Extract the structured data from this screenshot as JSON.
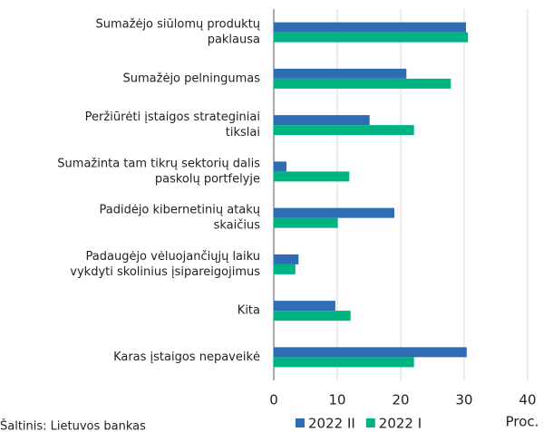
{
  "chart_data": {
    "type": "bar",
    "orientation": "horizontal",
    "categories": [
      [
        "Sumažėjo siūlomų produktų",
        "paklausa"
      ],
      [
        "Sumažėjo pelningumas"
      ],
      [
        "Peržiūrėti įstaigos strateginiai",
        "tikslai"
      ],
      [
        "Sumažinta tam tikrų sektorių dalis",
        "paskolų portfelyje"
      ],
      [
        "Padidėjo kibernetinių atakų",
        "skaičius"
      ],
      [
        "Padaugėjo vėluojančiųjų laiku",
        "vykdyti skolinius įsipareigojimus"
      ],
      [
        "Kita"
      ],
      [
        "Karas įstaigos nepaveikė"
      ]
    ],
    "series": [
      {
        "name": "2022 II",
        "color": "#2e6db4",
        "values": [
          30.3,
          20.9,
          15.1,
          2.0,
          19.0,
          3.9,
          9.7,
          30.4
        ]
      },
      {
        "name": "2022 I",
        "color": "#00b383",
        "values": [
          30.6,
          27.9,
          22.1,
          11.9,
          10.1,
          3.4,
          12.1,
          22.1
        ]
      }
    ],
    "xlim": [
      0,
      40
    ],
    "xticks": [
      0,
      10,
      20,
      30,
      40
    ],
    "grid": true,
    "x_label": "Proc.",
    "source": "Šaltinis: Lietuvos bankas"
  }
}
